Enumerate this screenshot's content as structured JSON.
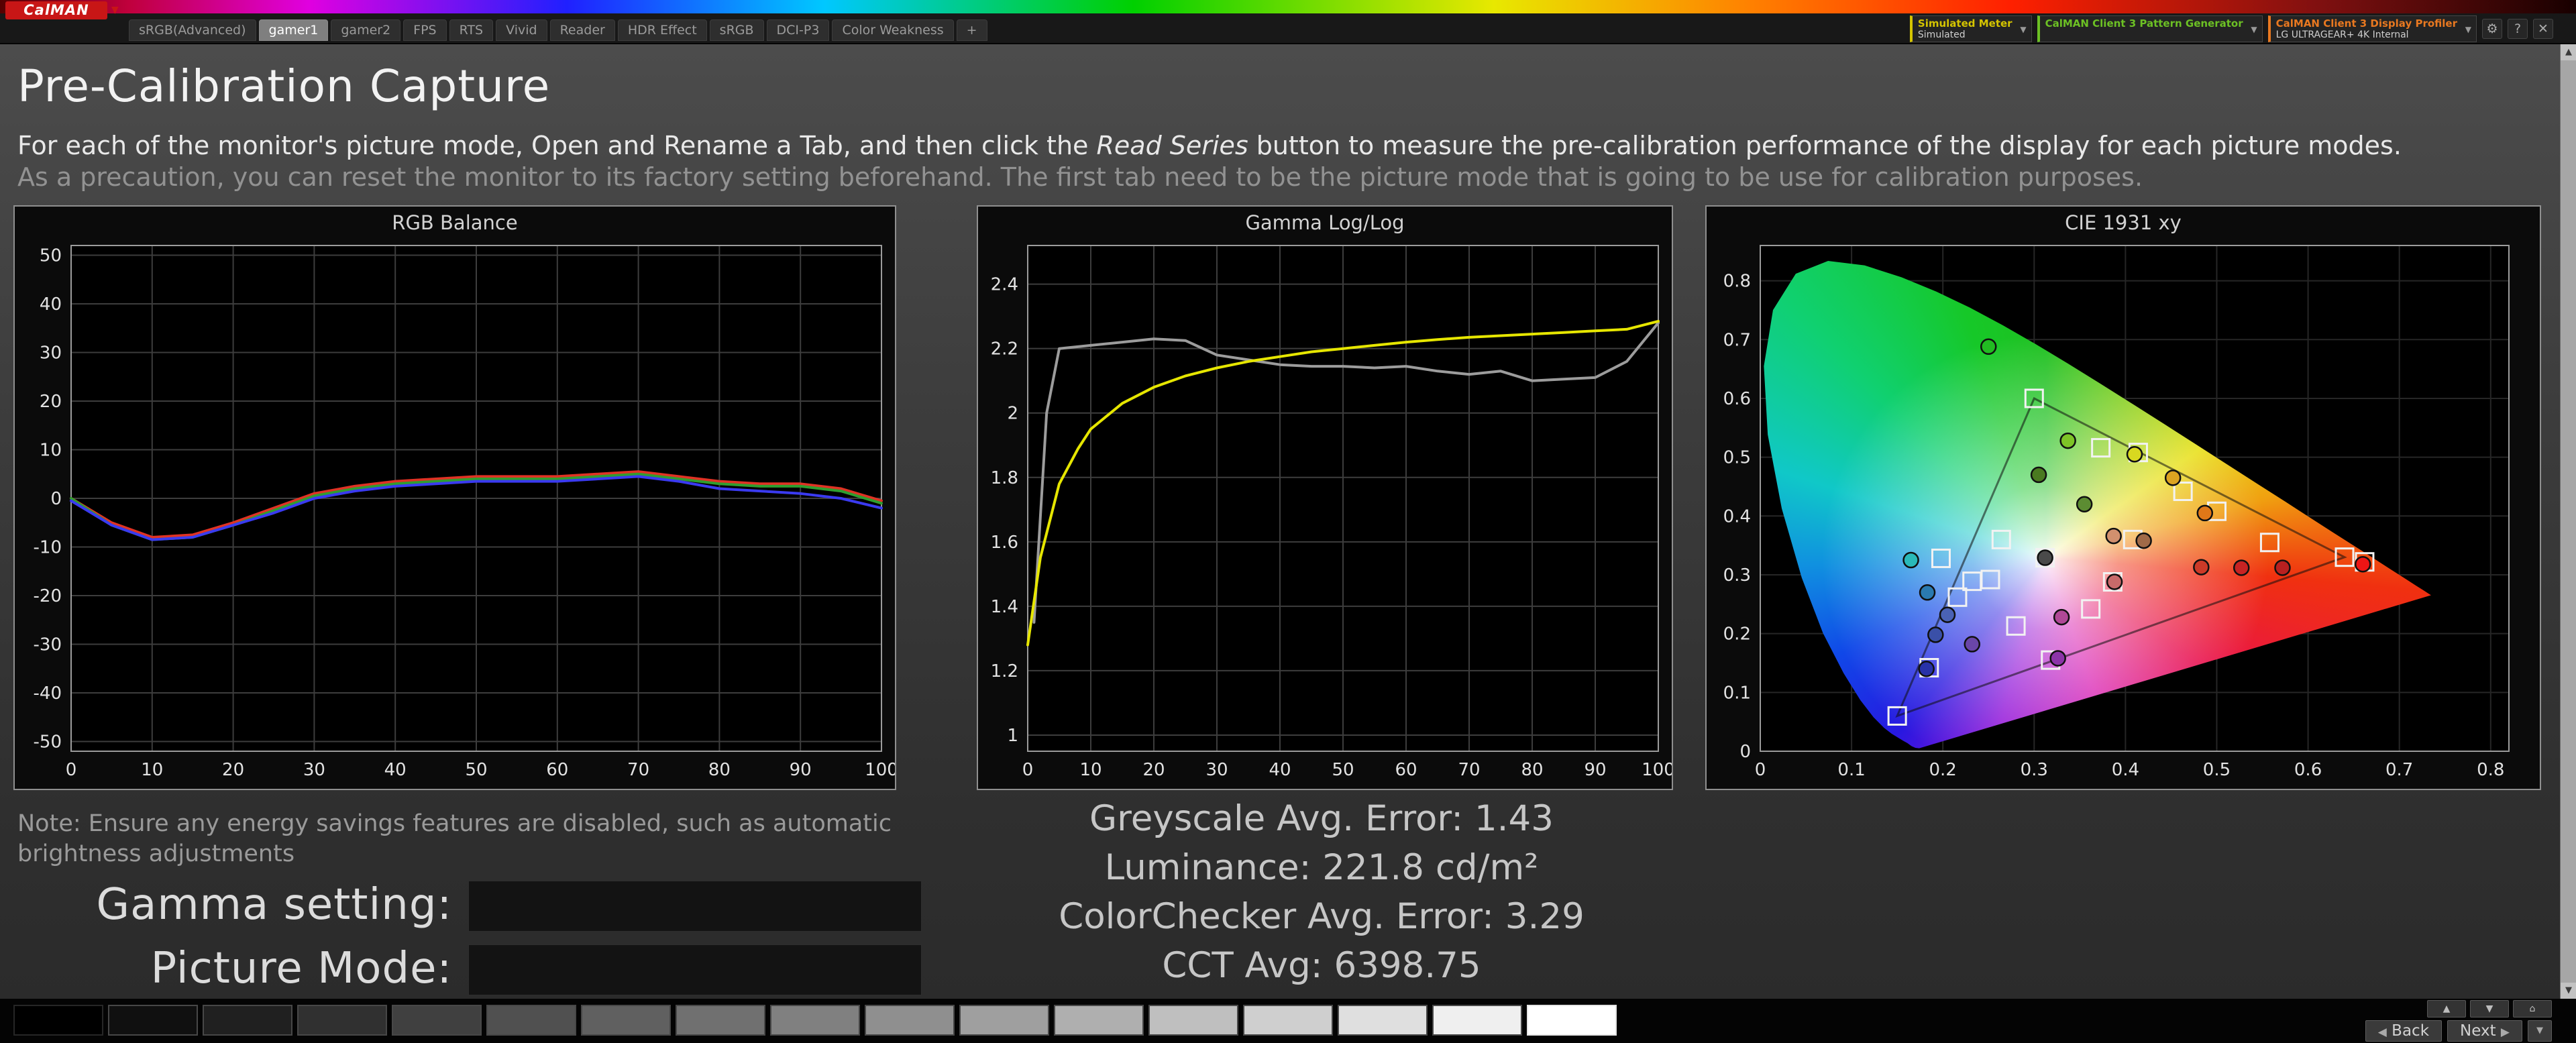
{
  "icons": {
    "caret_down": "▼",
    "caret_up": "▲",
    "back_arrow": "◀",
    "next_arrow": "▶",
    "home": "⌂",
    "gear": "⚙",
    "help": "?",
    "close": "✕"
  },
  "header": {
    "logo": "CalMAN",
    "tabs": [
      {
        "label": "sRGB(Advanced)",
        "selected": false
      },
      {
        "label": "gamer1",
        "selected": true
      },
      {
        "label": "gamer2",
        "selected": false
      },
      {
        "label": "FPS",
        "selected": false
      },
      {
        "label": "RTS",
        "selected": false
      },
      {
        "label": "Vivid",
        "selected": false
      },
      {
        "label": "Reader",
        "selected": false
      },
      {
        "label": "HDR Effect",
        "selected": false
      },
      {
        "label": "sRGB",
        "selected": false
      },
      {
        "label": "DCI-P3",
        "selected": false
      },
      {
        "label": "Color Weakness",
        "selected": false
      },
      {
        "label": "+",
        "selected": false
      }
    ],
    "meter": {
      "label": "Simulated Meter",
      "value": "Simulated"
    },
    "source": {
      "label": "CalMAN Client 3 Pattern Generator",
      "value": ""
    },
    "display": {
      "label": "CalMAN Client 3 Display Profiler",
      "value": "LG ULTRAGEAR+ 4K Internal"
    }
  },
  "page": {
    "title": "Pre-Calibration Capture",
    "instructions_1": "For each of the monitor's picture mode, Open and Rename a Tab, and then click the ",
    "instructions_em": "Read Series",
    "instructions_2": " button to measure the pre-calibration performance of the display for each picture modes. ",
    "instructions_muted": "As a precaution, you can reset the monitor to its factory setting beforehand. The first tab need to be the picture mode that is going to be use for calibration purposes.",
    "note_line1": "Note: Ensure any energy savings features are disabled, such as automatic",
    "note_line2": "brightness adjustments",
    "gamma_label": "Gamma setting:",
    "picture_label": "Picture Mode:",
    "gamma_value": "",
    "picture_value": "",
    "stats": [
      "Greyscale Avg. Error: 1.43",
      "Luminance: 221.8 cd/m²",
      "ColorChecker Avg. Error: 3.29",
      "CCT Avg: 6398.75"
    ]
  },
  "chart_data": [
    {
      "type": "line",
      "title": "RGB Balance",
      "xlabel": "",
      "ylabel": "",
      "xlim": [
        0,
        100
      ],
      "ylim": [
        -52,
        52
      ],
      "xticks": [
        0,
        10,
        20,
        30,
        40,
        50,
        60,
        70,
        80,
        90,
        100
      ],
      "yticks": [
        -50,
        -40,
        -30,
        -20,
        -10,
        0,
        10,
        20,
        30,
        40,
        50
      ],
      "x": [
        0,
        5,
        10,
        15,
        20,
        25,
        30,
        35,
        40,
        45,
        50,
        55,
        60,
        65,
        70,
        75,
        80,
        85,
        90,
        95,
        100
      ],
      "series": [
        {
          "name": "Red",
          "color": "#e03224",
          "values": [
            0,
            -5,
            -8,
            -7.5,
            -5,
            -2,
            1,
            2.5,
            3.5,
            4,
            4.5,
            4.5,
            4.5,
            5,
            5.5,
            4.5,
            3.5,
            3,
            3,
            2,
            -0.5
          ]
        },
        {
          "name": "Green",
          "color": "#2f9e2f",
          "values": [
            0,
            -5.5,
            -8.5,
            -8,
            -5.5,
            -2.5,
            0.5,
            2,
            3,
            3.5,
            4,
            4,
            4,
            4.5,
            5,
            4,
            3,
            2.5,
            2.5,
            1.5,
            -1
          ]
        },
        {
          "name": "Blue",
          "color": "#3a3af0",
          "values": [
            -0.5,
            -5.5,
            -8.5,
            -8,
            -5.5,
            -3,
            0,
            1.5,
            2.5,
            3,
            3.5,
            3.5,
            3.5,
            4,
            4.5,
            3.5,
            2,
            1.5,
            1,
            0,
            -2
          ]
        }
      ]
    },
    {
      "type": "line",
      "title": "Gamma Log/Log",
      "xlabel": "",
      "ylabel": "",
      "xlim": [
        0,
        100
      ],
      "ylim": [
        0.95,
        2.52
      ],
      "xticks": [
        0,
        10,
        20,
        30,
        40,
        50,
        60,
        70,
        80,
        90,
        100
      ],
      "yticks": [
        1,
        1.2,
        1.4,
        1.6,
        1.8,
        2,
        2.2,
        2.4
      ],
      "series": [
        {
          "name": "Reference",
          "color": "#9c9c9c",
          "points": [
            [
              1,
              1.35
            ],
            [
              3,
              2.0
            ],
            [
              5,
              2.2
            ],
            [
              10,
              2.21
            ],
            [
              15,
              2.22
            ],
            [
              20,
              2.23
            ],
            [
              25,
              2.225
            ],
            [
              30,
              2.18
            ],
            [
              35,
              2.165
            ],
            [
              40,
              2.15
            ],
            [
              45,
              2.145
            ],
            [
              50,
              2.145
            ],
            [
              55,
              2.14
            ],
            [
              60,
              2.145
            ],
            [
              65,
              2.13
            ],
            [
              70,
              2.12
            ],
            [
              75,
              2.13
            ],
            [
              80,
              2.1
            ],
            [
              85,
              2.105
            ],
            [
              90,
              2.11
            ],
            [
              95,
              2.16
            ],
            [
              100,
              2.28
            ]
          ]
        },
        {
          "name": "Measured",
          "color": "#e6e600",
          "points": [
            [
              0,
              1.28
            ],
            [
              2,
              1.55
            ],
            [
              5,
              1.78
            ],
            [
              8,
              1.89
            ],
            [
              10,
              1.95
            ],
            [
              15,
              2.03
            ],
            [
              20,
              2.08
            ],
            [
              25,
              2.115
            ],
            [
              30,
              2.14
            ],
            [
              35,
              2.16
            ],
            [
              40,
              2.175
            ],
            [
              45,
              2.19
            ],
            [
              50,
              2.2
            ],
            [
              55,
              2.21
            ],
            [
              60,
              2.22
            ],
            [
              65,
              2.228
            ],
            [
              70,
              2.235
            ],
            [
              75,
              2.24
            ],
            [
              80,
              2.245
            ],
            [
              85,
              2.25
            ],
            [
              90,
              2.255
            ],
            [
              95,
              2.26
            ],
            [
              100,
              2.285
            ]
          ]
        }
      ]
    },
    {
      "type": "scatter",
      "title": "CIE 1931 xy",
      "xlabel": "",
      "ylabel": "",
      "xlim": [
        0,
        0.82
      ],
      "ylim": [
        0,
        0.86
      ],
      "xticks": [
        0,
        0.1,
        0.2,
        0.3,
        0.4,
        0.5,
        0.6,
        0.7,
        0.8
      ],
      "yticks": [
        0,
        0.1,
        0.2,
        0.3,
        0.4,
        0.5,
        0.6,
        0.7,
        0.8
      ],
      "white_point": [
        0.3127,
        0.329
      ],
      "gamut_triangle": [
        [
          0.64,
          0.33
        ],
        [
          0.3,
          0.6
        ],
        [
          0.15,
          0.06
        ]
      ],
      "targets": [
        [
          0.64,
          0.33
        ],
        [
          0.662,
          0.322
        ],
        [
          0.3,
          0.6
        ],
        [
          0.15,
          0.06
        ],
        [
          0.312,
          0.329
        ],
        [
          0.414,
          0.508
        ],
        [
          0.463,
          0.442
        ],
        [
          0.5,
          0.408
        ],
        [
          0.558,
          0.355
        ],
        [
          0.373,
          0.516
        ],
        [
          0.232,
          0.289
        ],
        [
          0.252,
          0.292
        ],
        [
          0.216,
          0.262
        ],
        [
          0.28,
          0.213
        ],
        [
          0.318,
          0.155
        ],
        [
          0.362,
          0.242
        ],
        [
          0.386,
          0.288
        ],
        [
          0.185,
          0.142
        ],
        [
          0.408,
          0.36
        ],
        [
          0.264,
          0.36
        ],
        [
          0.198,
          0.328
        ]
      ],
      "measurements": [
        {
          "x": 0.25,
          "y": 0.688,
          "color": "#22bb22"
        },
        {
          "x": 0.337,
          "y": 0.528,
          "color": "#7ec427"
        },
        {
          "x": 0.305,
          "y": 0.47,
          "color": "#4a7a20"
        },
        {
          "x": 0.355,
          "y": 0.42,
          "color": "#5c8c32"
        },
        {
          "x": 0.41,
          "y": 0.505,
          "color": "#d8d820"
        },
        {
          "x": 0.452,
          "y": 0.465,
          "color": "#dca421"
        },
        {
          "x": 0.487,
          "y": 0.405,
          "color": "#e07818"
        },
        {
          "x": 0.483,
          "y": 0.313,
          "color": "#cc3a28"
        },
        {
          "x": 0.527,
          "y": 0.312,
          "color": "#c82323"
        },
        {
          "x": 0.572,
          "y": 0.312,
          "color": "#b82020"
        },
        {
          "x": 0.66,
          "y": 0.318,
          "color": "#ee1515"
        },
        {
          "x": 0.42,
          "y": 0.358,
          "color": "#a06a48"
        },
        {
          "x": 0.387,
          "y": 0.366,
          "color": "#d2906e"
        },
        {
          "x": 0.388,
          "y": 0.288,
          "color": "#c86a6a"
        },
        {
          "x": 0.165,
          "y": 0.325,
          "color": "#2ab9b9"
        },
        {
          "x": 0.183,
          "y": 0.27,
          "color": "#2a7ab0"
        },
        {
          "x": 0.205,
          "y": 0.232,
          "color": "#4a62b4"
        },
        {
          "x": 0.192,
          "y": 0.198,
          "color": "#3a50a8"
        },
        {
          "x": 0.182,
          "y": 0.14,
          "color": "#2832a8"
        },
        {
          "x": 0.232,
          "y": 0.182,
          "color": "#6a46a8"
        },
        {
          "x": 0.33,
          "y": 0.228,
          "color": "#b04896"
        },
        {
          "x": 0.326,
          "y": 0.158,
          "color": "#8c34a8"
        },
        {
          "x": 0.312,
          "y": 0.329,
          "color": "#4a4a4a"
        }
      ]
    }
  ],
  "footer": {
    "back_label": "Back",
    "next_label": "Next",
    "swatches": [
      "#000000",
      "#101010",
      "#202020",
      "#303030",
      "#404040",
      "#505050",
      "#606060",
      "#707070",
      "#808080",
      "#8f8f8f",
      "#9f9f9f",
      "#afafaf",
      "#bfbfbf",
      "#cfcfcf",
      "#dfdfdf",
      "#efefef",
      "#ffffff"
    ]
  }
}
